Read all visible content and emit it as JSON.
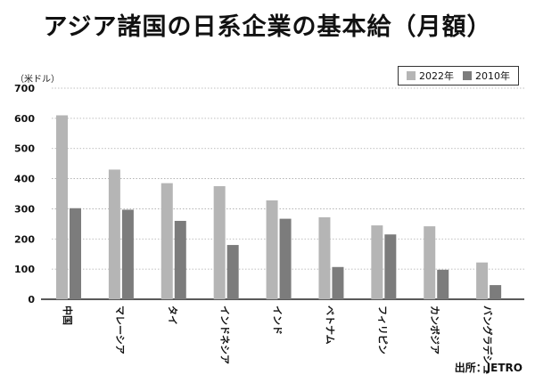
{
  "title": "アジア諸国の日系企業の基本給（月額）",
  "source": "出所：JETRO",
  "colors": {
    "s2022": "#b5b5b5",
    "s2010": "#7c7c7c",
    "axis": "#222222",
    "grid": "#aaaaaa"
  },
  "chart_data": {
    "type": "bar",
    "title": "アジア諸国の日系企業の基本給（月額）",
    "ylabel": "（米ドル）",
    "xlabel": "",
    "ylim": [
      0,
      700
    ],
    "yticks": [
      0,
      100,
      200,
      300,
      400,
      500,
      600,
      700
    ],
    "grid": true,
    "legend_position": "top-right",
    "categories": [
      "中国",
      "マレーシア",
      "タイ",
      "インドネシア",
      "インド",
      "ベトナム",
      "フィリピン",
      "カンボジア",
      "バングラデシュ"
    ],
    "series": [
      {
        "name": "2022年",
        "values": [
          610,
          430,
          385,
          375,
          328,
          272,
          245,
          242,
          122
        ]
      },
      {
        "name": "2010年",
        "values": [
          302,
          297,
          260,
          180,
          267,
          107,
          215,
          98,
          47
        ]
      }
    ]
  }
}
